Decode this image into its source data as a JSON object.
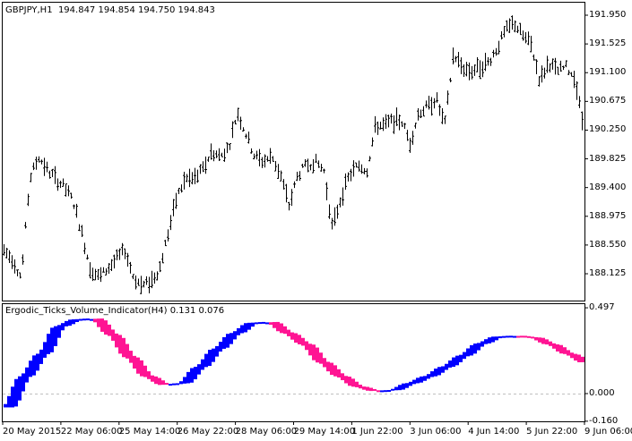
{
  "main_panel": {
    "symbol": "GBPJPY,H1",
    "ohlc": "194.847 194.854 194.750 194.843"
  },
  "indicator_panel": {
    "name": "Ergodic_Ticks_Volume_Indicator(H4)",
    "values": "0.131 0.076"
  },
  "colors": {
    "bars": "#000000",
    "rising": "#0000FF",
    "falling": "#FF1493",
    "zero_line": "#C0C0C0"
  },
  "chart_data": [
    {
      "type": "bar",
      "subtype": "ohlc-bars",
      "title": "GBPJPY,H1",
      "ylim": [
        187.9,
        192.1
      ],
      "y_ticks": [
        "191.950",
        "191.525",
        "191.100",
        "190.675",
        "190.250",
        "189.825",
        "189.400",
        "188.975",
        "188.550",
        "188.125"
      ],
      "approx_price_path": [
        188.47,
        188.34,
        188.07,
        189.53,
        189.86,
        189.66,
        189.53,
        189.4,
        189.2,
        188.73,
        188.2,
        188.07,
        188.2,
        188.34,
        188.47,
        188.07,
        187.94,
        188.01,
        188.2,
        188.73,
        189.26,
        189.53,
        189.53,
        189.66,
        189.93,
        189.86,
        189.99,
        190.52,
        190.19,
        189.86,
        189.79,
        189.86,
        189.59,
        189.13,
        189.59,
        189.73,
        189.79,
        189.66,
        188.8,
        189.26,
        189.59,
        189.73,
        189.66,
        190.32,
        190.32,
        190.39,
        190.39,
        190.06,
        190.52,
        190.59,
        190.72,
        190.32,
        191.38,
        191.18,
        191.12,
        191.18,
        191.25,
        191.45,
        191.71,
        191.84,
        191.65,
        191.51,
        190.98,
        191.25,
        191.12,
        191.18,
        191.05,
        190.32
      ],
      "grid": false
    },
    {
      "type": "area",
      "title": "Ergodic_Ticks_Volume_Indicator(H4)",
      "ylim": [
        -0.16,
        0.497
      ],
      "y_ticks": [
        "0.497",
        "0.000",
        "-0.160"
      ],
      "x_ticks": [
        "20 May 2015",
        "22 May 06:00",
        "25 May 14:00",
        "26 May 22:00",
        "28 May 06:00",
        "29 May 14:00",
        "1 Jun 22:00",
        "3 Jun 06:00",
        "4 Jun 14:00",
        "5 Jun 22:00",
        "9 Jun 06:00"
      ],
      "main_values": [
        -0.08,
        0.1,
        0.23,
        0.39,
        0.43,
        0.435,
        0.34,
        0.21,
        0.1,
        0.05,
        0.06,
        0.155,
        0.26,
        0.35,
        0.41,
        0.415,
        0.35,
        0.285,
        0.18,
        0.1,
        0.04,
        0.015,
        0.02,
        0.06,
        0.1,
        0.155,
        0.22,
        0.29,
        0.33,
        0.335,
        0.325,
        0.285,
        0.23,
        0.18
      ],
      "last_values": [
        0.131,
        0.076
      ],
      "zero_line": true
    }
  ]
}
